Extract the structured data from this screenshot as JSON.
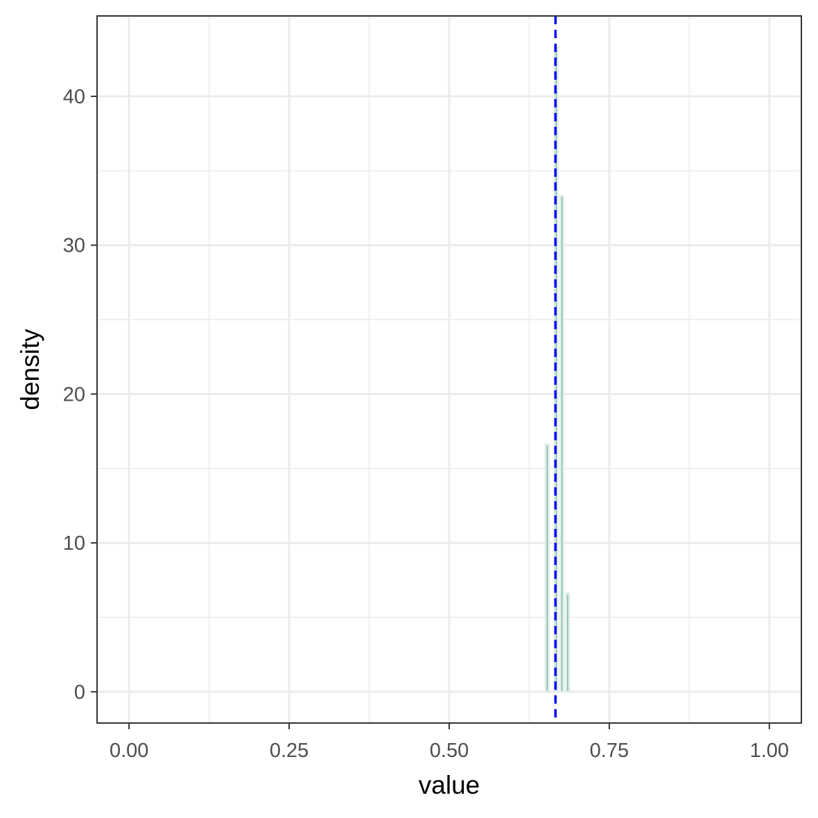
{
  "chart_data": {
    "type": "bar",
    "xlabel": "value",
    "ylabel": "density",
    "xlim": [
      -0.05,
      1.05
    ],
    "ylim": [
      -2.1,
      45.4
    ],
    "x_ticks": [
      {
        "value": 0,
        "label": "0.00"
      },
      {
        "value": 0.25,
        "label": "0.25"
      },
      {
        "value": 0.5,
        "label": "0.50"
      },
      {
        "value": 0.75,
        "label": "0.75"
      },
      {
        "value": 1,
        "label": "1.00"
      }
    ],
    "x_minor": [
      0.125,
      0.375,
      0.625,
      0.875
    ],
    "y_ticks": [
      {
        "value": 0,
        "label": "0"
      },
      {
        "value": 10,
        "label": "10"
      },
      {
        "value": 20,
        "label": "20"
      },
      {
        "value": 30,
        "label": "30"
      },
      {
        "value": 40,
        "label": "40"
      }
    ],
    "y_minor": [
      5,
      15,
      25,
      35
    ],
    "grid": true,
    "bins": [
      {
        "x": 0.653,
        "density": 16.6
      },
      {
        "x": 0.667,
        "density": 43.3
      },
      {
        "x": 0.676,
        "density": 33.3
      },
      {
        "x": 0.685,
        "density": 6.6
      }
    ],
    "bin_width": 0.0045,
    "bar_color": "#66b2a0",
    "bar_outline_color": "#e0ece8",
    "reference_line": {
      "x": 0.666,
      "color": "#0000ff",
      "style": "dashed"
    }
  }
}
